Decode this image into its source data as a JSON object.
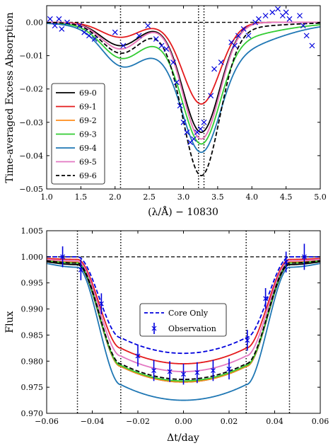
{
  "chart_data": [
    {
      "type": "line",
      "xlabel": "(λ/Å) − 10830",
      "ylabel": "Time-averaged Excess Absorption",
      "xlim": [
        1.0,
        5.0
      ],
      "ylim": [
        -0.05,
        0.005
      ],
      "xticks": [
        1.0,
        1.5,
        2.0,
        2.5,
        3.0,
        3.5,
        4.0,
        4.5,
        5.0
      ],
      "xtick_labels": [
        "1.0",
        "1.5",
        "2.0",
        "2.5",
        "3.0",
        "3.5",
        "4.0",
        "4.5",
        "5.0"
      ],
      "yticks": [
        0.0,
        -0.01,
        -0.02,
        -0.03,
        -0.04,
        -0.05
      ],
      "ytick_labels": [
        "0.00",
        "−0.01",
        "−0.02",
        "−0.03",
        "−0.04",
        "−0.05"
      ],
      "legend_position": "lower-left",
      "vlines": [
        2.08,
        3.22,
        3.3
      ],
      "hline": 0.0,
      "grid": false,
      "model": {
        "base": 0.0,
        "components": [
          {
            "center": 2.08,
            "sigma": 0.28
          },
          {
            "center": 3.26,
            "sigma": 0.27
          }
        ]
      },
      "series": [
        {
          "name": "69-0",
          "color": "#000000",
          "dash": "solid",
          "amps": [
            0.007,
            0.033
          ],
          "wing": 0.0
        },
        {
          "name": "69-1",
          "color": "#e41a1c",
          "dash": "solid",
          "amps": [
            0.0045,
            0.0245
          ],
          "wing": 0.0
        },
        {
          "name": "69-2",
          "color": "#ff8c1a",
          "dash": "solid",
          "amps": [
            0.008,
            0.035
          ],
          "wing": 0.0
        },
        {
          "name": "69-3",
          "color": "#33cc33",
          "dash": "solid",
          "amps": [
            0.0085,
            0.0305
          ],
          "wing": 0.006
        },
        {
          "name": "69-4",
          "color": "#1f77b4",
          "dash": "solid",
          "amps": [
            0.009,
            0.028
          ],
          "wing": 0.011
        },
        {
          "name": "69-5",
          "color": "#e377c2",
          "dash": "solid",
          "amps": [
            0.008,
            0.035
          ],
          "wing": 0.0
        },
        {
          "name": "69-6",
          "color": "#000000",
          "dash": "dashed",
          "amps": [
            0.0085,
            0.044
          ],
          "wing": 0.002
        }
      ],
      "observation": {
        "color": "#0000dd",
        "x": [
          1.05,
          1.12,
          1.18,
          1.22,
          1.3,
          1.48,
          1.55,
          1.62,
          1.7,
          2.0,
          2.12,
          2.35,
          2.48,
          2.6,
          2.68,
          2.75,
          2.85,
          2.9,
          2.95,
          3.0,
          3.05,
          3.1,
          3.15,
          3.2,
          3.25,
          3.3,
          3.4,
          3.45,
          3.55,
          3.7,
          3.75,
          3.8,
          3.88,
          3.95,
          4.05,
          4.1,
          4.2,
          4.3,
          4.38,
          4.45,
          4.5,
          4.55,
          4.7,
          4.75,
          4.8,
          4.88
        ],
        "y": [
          0.001,
          -0.001,
          0.001,
          -0.002,
          0.0,
          -0.001,
          -0.003,
          -0.004,
          -0.005,
          -0.003,
          -0.007,
          -0.004,
          -0.001,
          -0.005,
          -0.007,
          -0.008,
          -0.012,
          -0.018,
          -0.025,
          -0.03,
          -0.033,
          -0.036,
          -0.035,
          -0.033,
          -0.032,
          -0.03,
          -0.022,
          -0.014,
          -0.012,
          -0.006,
          -0.007,
          -0.004,
          -0.002,
          -0.004,
          0.0,
          0.001,
          0.002,
          0.003,
          0.004,
          0.002,
          0.003,
          0.001,
          0.002,
          -0.001,
          -0.004,
          -0.007
        ]
      }
    },
    {
      "type": "line",
      "xlabel": "Δt/day",
      "ylabel": "Flux",
      "xlim": [
        -0.06,
        0.06
      ],
      "ylim": [
        0.97,
        1.005
      ],
      "xticks": [
        -0.06,
        -0.04,
        -0.02,
        0.0,
        0.02,
        0.04,
        0.06
      ],
      "xtick_labels": [
        "−0.06",
        "−0.04",
        "−0.02",
        "0.00",
        "0.02",
        "0.04",
        "0.06"
      ],
      "yticks": [
        0.97,
        0.975,
        0.98,
        0.985,
        0.99,
        0.995,
        1.0,
        1.005
      ],
      "ytick_labels": [
        "0.970",
        "0.975",
        "0.980",
        "0.985",
        "0.990",
        "0.995",
        "1.000",
        "1.005"
      ],
      "legend_position": "center",
      "vlines": [
        -0.0465,
        -0.0275,
        0.0275,
        0.0465
      ],
      "hline": 1.0,
      "grid": false,
      "model": {
        "t1": 0.0465,
        "t2": 0.0275
      },
      "series": [
        {
          "name": "",
          "color": "#000000",
          "dash": "solid",
          "depth": 0.024,
          "limb": 0.003,
          "pre": 0.0015
        },
        {
          "name": "",
          "color": "#e41a1c",
          "dash": "solid",
          "depth": 0.0205,
          "limb": 0.003,
          "pre": 0.0005
        },
        {
          "name": "",
          "color": "#ff8c1a",
          "dash": "solid",
          "depth": 0.024,
          "limb": 0.003,
          "pre": 0.001
        },
        {
          "name": "",
          "color": "#33cc33",
          "dash": "solid",
          "depth": 0.0238,
          "limb": 0.003,
          "pre": 0.0012
        },
        {
          "name": "",
          "color": "#1f77b4",
          "dash": "solid",
          "depth": 0.0275,
          "limb": 0.003,
          "pre": 0.002
        },
        {
          "name": "",
          "color": "#e377c2",
          "dash": "solid",
          "depth": 0.022,
          "limb": 0.003,
          "pre": 0.0008
        },
        {
          "name": "",
          "color": "#000000",
          "dash": "dashed",
          "depth": 0.0235,
          "limb": 0.003,
          "pre": 0.0012
        },
        {
          "name": "Core Only",
          "color": "#0000dd",
          "dash": "dashed",
          "depth": 0.0185,
          "limb": 0.003,
          "pre": 0.0,
          "legend": true
        }
      ],
      "observation": {
        "name": "Observation",
        "color": "#0000dd",
        "x": [
          -0.053,
          -0.045,
          -0.036,
          -0.02,
          -0.013,
          -0.006,
          0.0,
          0.006,
          0.013,
          0.02,
          0.028,
          0.036,
          0.045,
          0.053
        ],
        "y": [
          1.0,
          0.9975,
          0.991,
          0.981,
          0.9782,
          0.978,
          0.9775,
          0.9778,
          0.9782,
          0.9785,
          0.984,
          0.992,
          0.999,
          1.0
        ],
        "err": [
          0.002,
          0.002,
          0.002,
          0.002,
          0.002,
          0.002,
          0.002,
          0.002,
          0.002,
          0.002,
          0.002,
          0.002,
          0.002,
          0.0025
        ]
      }
    }
  ]
}
